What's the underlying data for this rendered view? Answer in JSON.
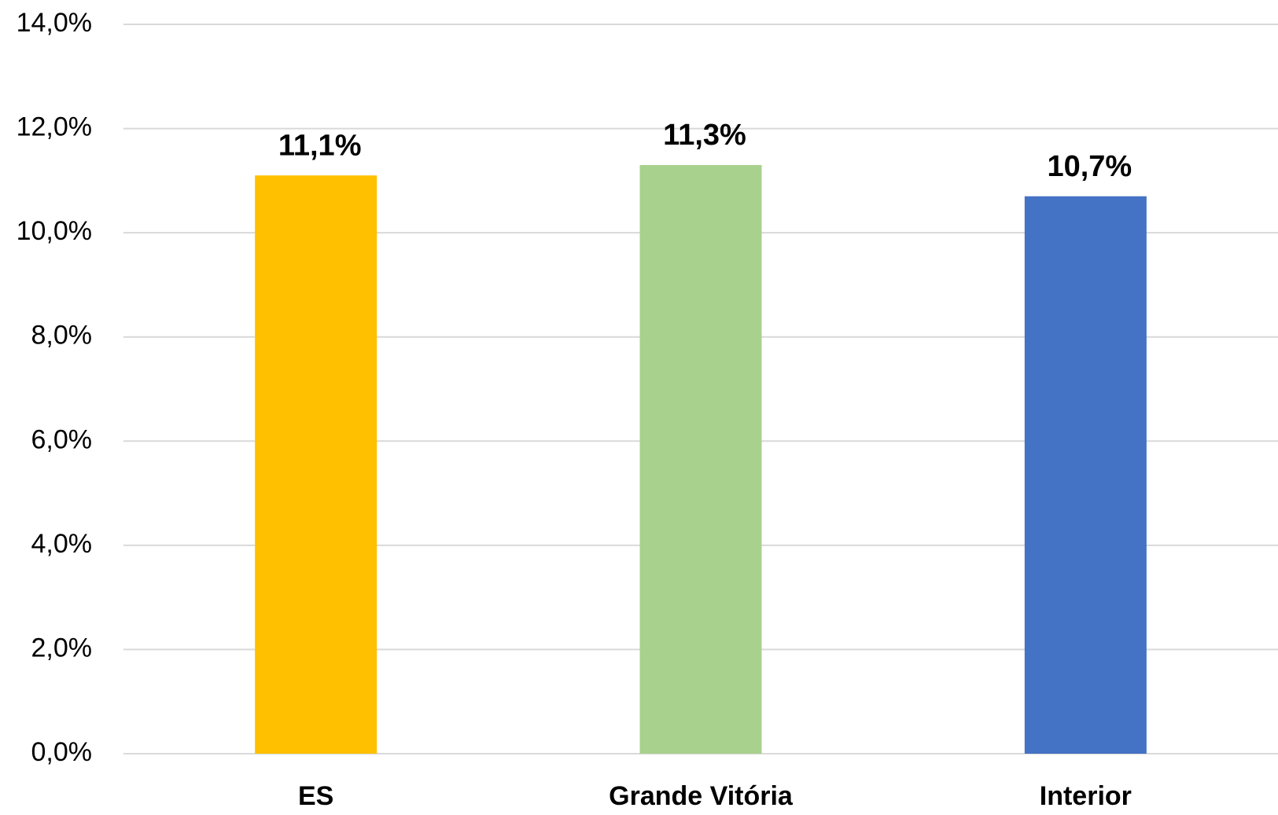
{
  "chart_data": {
    "type": "bar",
    "categories": [
      "ES",
      "Grande Vitória",
      "Interior"
    ],
    "values": [
      11.1,
      11.3,
      10.7
    ],
    "value_labels": [
      "11,1%",
      "11,3%",
      "10,7%"
    ],
    "colors": [
      "#ffc000",
      "#a9d18e",
      "#4472c4"
    ],
    "ylim": [
      0,
      14
    ],
    "yticks": [
      {
        "value": 0,
        "label": "0,0%"
      },
      {
        "value": 2,
        "label": "2,0%"
      },
      {
        "value": 4,
        "label": "4,0%"
      },
      {
        "value": 6,
        "label": "6,0%"
      },
      {
        "value": 8,
        "label": "8,0%"
      },
      {
        "value": 10,
        "label": "10,0%"
      },
      {
        "value": 12,
        "label": "12,0%"
      },
      {
        "value": 14,
        "label": "14,0%"
      }
    ],
    "grid": true
  }
}
